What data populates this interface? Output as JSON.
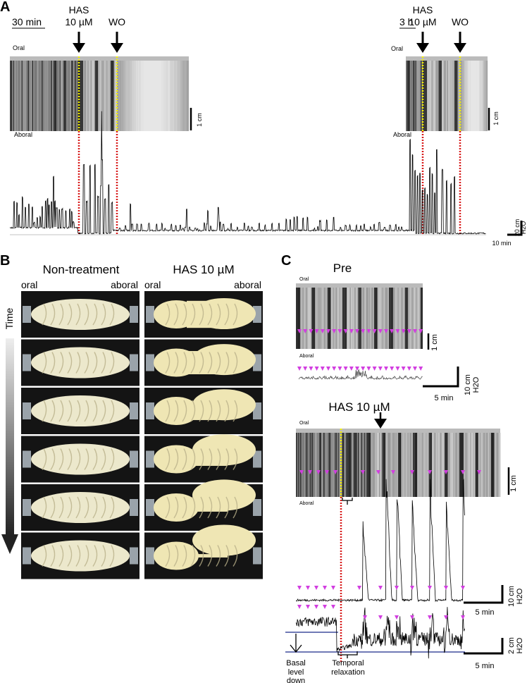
{
  "panel_a": {
    "label": "A",
    "left": {
      "scale_time": "30 min",
      "has_line1": "HAS",
      "has_line2": "10 µM",
      "wo": "WO",
      "oral": "Oral",
      "aboral": "Aboral",
      "scale_length": "1 cm"
    },
    "right": {
      "scale_time": "3 h",
      "has_line1": "HAS",
      "has_line2": "10 µM",
      "wo": "WO",
      "oral": "Oral",
      "aboral": "Aboral",
      "scale_length": "1 cm"
    },
    "trace_scale_y": [
      "20 cm",
      "H2O"
    ],
    "trace_scale_x": "10 min"
  },
  "panel_b": {
    "label": "B",
    "columns": [
      {
        "title": "Non-treatment",
        "oral": "oral",
        "aboral": "aboral"
      },
      {
        "title": "HAS 10 µM",
        "oral": "oral",
        "aboral": "aboral"
      }
    ],
    "time_label": "Time"
  },
  "panel_c": {
    "label": "C",
    "pre": {
      "title": "Pre",
      "oral": "Oral",
      "aboral": "Aboral",
      "scale_length": "1 cm",
      "scale_y": [
        "10 cm",
        "H2O"
      ],
      "scale_x": "5 min"
    },
    "has": {
      "title": "HAS 10 µM",
      "oral": "Oral",
      "aboral": "Aboral",
      "scale_length": "1 cm",
      "trace1_scale_y": [
        "10 cm",
        "H2O"
      ],
      "trace1_scale_x": "5 min",
      "trace2_scale_y": [
        "2 cm",
        "H2O"
      ],
      "trace2_scale_x": "5 min"
    },
    "annotation_basal": [
      "Basal",
      "level",
      "down"
    ],
    "annotation_relaxation": [
      "Temporal",
      "relaxation"
    ]
  }
}
